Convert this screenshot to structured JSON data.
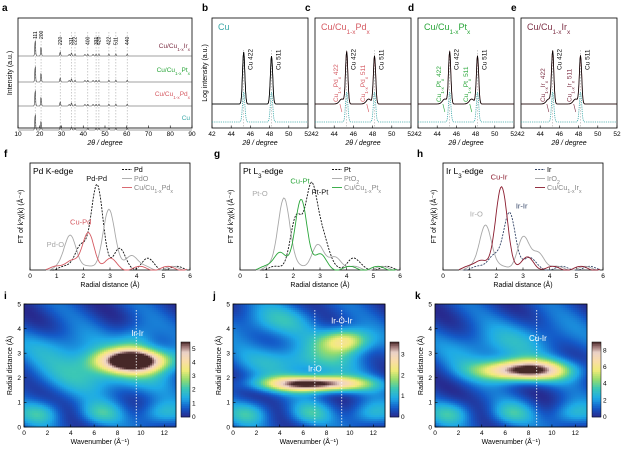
{
  "chart_data": [
    {
      "panel": "a",
      "type": "line",
      "xlabel": "2θ / degree",
      "ylabel": "Intensity (a.u.)",
      "xlim": [
        10,
        90
      ],
      "xticks": [
        "10",
        "20",
        "30",
        "40",
        "50",
        "60",
        "70",
        "80",
        "90"
      ],
      "hkl": [
        {
          "label": "111",
          "x": 17.9
        },
        {
          "label": "200",
          "x": 20.6
        },
        {
          "label": "220",
          "x": 29.4
        },
        {
          "label": "311",
          "x": 34.6
        },
        {
          "label": "222",
          "x": 36.2
        },
        {
          "label": "400",
          "x": 42.1
        },
        {
          "label": "331",
          "x": 45.9
        },
        {
          "label": "420",
          "x": 47.2
        },
        {
          "label": "422",
          "x": 51.8
        },
        {
          "label": "511",
          "x": 55.0
        },
        {
          "label": "440",
          "x": 60.2
        }
      ],
      "series": [
        {
          "name": "Cu/Cu1-xIrx",
          "color": "#7d3045"
        },
        {
          "name": "Cu/Cu1-xPtx",
          "color": "#2aa63a"
        },
        {
          "name": "Cu/Cu1-xPdx",
          "color": "#d55a62"
        },
        {
          "name": "Cu",
          "color": "#3aa7a7"
        }
      ]
    },
    {
      "panel": "b",
      "type": "line",
      "title": "Cu",
      "title_color": "#3aa7a7",
      "xlabel": "2θ / degree",
      "ylabel": "Log intensity (a.u.)",
      "xlim": [
        42,
        52
      ],
      "xticks": [
        "42",
        "44",
        "46",
        "48",
        "50",
        "52"
      ],
      "peaks": [
        {
          "label": "Cu 422",
          "x": 45.3
        },
        {
          "label": "Cu 511",
          "x": 48.2
        }
      ]
    },
    {
      "panel": "c",
      "type": "line",
      "title": "Cu/Cu1-xPdx",
      "title_color": "#d55a62",
      "xlabel": "2θ / degree",
      "xlim": [
        42,
        52
      ],
      "xticks": [
        "42",
        "44",
        "46",
        "48",
        "50",
        "52"
      ],
      "peaks": [
        {
          "label": "Cu 422",
          "x": 45.3
        },
        {
          "label": "Cu 511",
          "x": 48.2
        }
      ],
      "alloy_peaks": [
        {
          "label": "Cu1-xPdx 422",
          "x": 44.8
        },
        {
          "label": "Cu1-xPdx 511",
          "x": 47.6
        }
      ]
    },
    {
      "panel": "d",
      "type": "line",
      "title": "Cu/Cu1-xPtx",
      "title_color": "#2aa63a",
      "xlabel": "2θ / degree",
      "xlim": [
        42,
        52
      ],
      "xticks": [
        "42",
        "44",
        "46",
        "48",
        "50",
        "52"
      ],
      "peaks": [
        {
          "label": "Cu 422",
          "x": 45.3
        },
        {
          "label": "Cu 511",
          "x": 48.2
        }
      ],
      "alloy_peaks": [
        {
          "label": "Cu1-xPtx 422",
          "x": 44.8
        },
        {
          "label": "Cu1-xPtx 511",
          "x": 47.6
        }
      ]
    },
    {
      "panel": "e",
      "type": "line",
      "title": "Cu/Cu1-xIrx",
      "title_color": "#7d3045",
      "xlabel": "2θ / degree",
      "xlim": [
        42,
        52
      ],
      "xticks": [
        "42",
        "44",
        "46",
        "48",
        "50",
        "52"
      ],
      "peaks": [
        {
          "label": "Cu 422",
          "x": 45.3
        },
        {
          "label": "Cu 511",
          "x": 48.2
        }
      ],
      "alloy_peaks": [
        {
          "label": "Cu1-xIrx 422",
          "x": 44.9
        },
        {
          "label": "Cu1-xIrx 511",
          "x": 47.7
        }
      ]
    },
    {
      "panel": "f",
      "type": "line",
      "title": "Pd K-edge",
      "xlabel": "Radial distance (Å)",
      "ylabel": "FT of k³χ(k) (Å⁻⁴)",
      "xlim": [
        0,
        6
      ],
      "xticks": [
        "0",
        "1",
        "2",
        "3",
        "4",
        "5",
        "6"
      ],
      "series": [
        {
          "name": "Pd",
          "color": "#111111",
          "style": "dashed",
          "peaks": [
            [
              2.52,
              1.0
            ],
            [
              1.9,
              0.3
            ],
            [
              3.35,
              0.22
            ],
            [
              4.4,
              0.1
            ]
          ]
        },
        {
          "name": "PdO",
          "color": "#a8a8a8",
          "style": "solid",
          "peaks": [
            [
              1.52,
              0.42
            ],
            [
              2.95,
              0.72
            ],
            [
              3.8,
              0.18
            ]
          ]
        },
        {
          "name": "Cu/Cu1-xPdx",
          "color": "#d55a62",
          "style": "solid",
          "peaks": [
            [
              2.2,
              0.42
            ],
            [
              1.55,
              0.12
            ],
            [
              3.0,
              0.1
            ]
          ]
        }
      ],
      "annotations": [
        {
          "text": "Pd-Pd",
          "x": 2.5,
          "y": 1.08,
          "color": "#111111"
        },
        {
          "text": "Cu-Pd",
          "x": 1.9,
          "y": 0.55,
          "color": "#d55a62"
        },
        {
          "text": "Pd-O",
          "x": 0.95,
          "y": 0.28,
          "color": "#a8a8a8"
        }
      ]
    },
    {
      "panel": "g",
      "type": "line",
      "title": "Pt L3-edge",
      "xlabel": "Radial distance (Å)",
      "ylabel": "FT of k³χ(k) (Å⁻⁴)",
      "xlim": [
        0,
        6
      ],
      "xticks": [
        "0",
        "1",
        "2",
        "3",
        "4",
        "5",
        "6"
      ],
      "series": [
        {
          "name": "Pt",
          "color": "#111111",
          "style": "dashed",
          "peaks": [
            [
              2.1,
              0.62
            ],
            [
              2.68,
              0.98
            ],
            [
              3.1,
              0.35
            ],
            [
              4.2,
              0.12
            ]
          ]
        },
        {
          "name": "PtO2",
          "color": "#a8a8a8",
          "style": "solid",
          "peaks": [
            [
              1.65,
              0.88
            ],
            [
              2.9,
              0.3
            ],
            [
              3.6,
              0.15
            ]
          ]
        },
        {
          "name": "Cu/Cu1-xPtx",
          "color": "#2aa63a",
          "style": "solid",
          "peaks": [
            [
              2.3,
              0.84
            ],
            [
              1.5,
              0.22
            ],
            [
              3.0,
              0.15
            ]
          ]
        }
      ],
      "annotations": [
        {
          "text": "Cu-Pt",
          "x": 2.25,
          "y": 1.05,
          "color": "#2aa63a"
        },
        {
          "text": "Pt-Pt",
          "x": 3.0,
          "y": 0.92,
          "color": "#111111"
        },
        {
          "text": "Pt-O",
          "x": 0.75,
          "y": 0.9,
          "color": "#a8a8a8"
        }
      ]
    },
    {
      "panel": "h",
      "type": "line",
      "title": "Ir L3-edge",
      "xlabel": "Radial distance (Å)",
      "ylabel": "FT of k³χ(k) (Å⁻⁴)",
      "xlim": [
        0,
        6
      ],
      "xticks": [
        "0",
        "1",
        "2",
        "3",
        "4",
        "5",
        "6"
      ],
      "series": [
        {
          "name": "Ir",
          "color": "#334466",
          "style": "dashed",
          "peaks": [
            [
              2.5,
              0.66
            ],
            [
              1.9,
              0.18
            ],
            [
              3.2,
              0.12
            ]
          ]
        },
        {
          "name": "IrO2",
          "color": "#a8a8a8",
          "style": "solid",
          "peaks": [
            [
              1.6,
              0.55
            ],
            [
              3.0,
              0.38
            ],
            [
              3.6,
              0.2
            ]
          ]
        },
        {
          "name": "Cu/Cu1-xIrx",
          "color": "#8a1b2e",
          "style": "solid",
          "peaks": [
            [
              2.2,
              0.98
            ],
            [
              1.45,
              0.12
            ],
            [
              3.2,
              0.12
            ]
          ]
        }
      ],
      "annotations": [
        {
          "text": "Cu-Ir",
          "x": 2.1,
          "y": 1.1,
          "color": "#8a1b2e"
        },
        {
          "text": "Ir-Ir",
          "x": 2.95,
          "y": 0.75,
          "color": "#334466"
        },
        {
          "text": "Ir-O",
          "x": 1.25,
          "y": 0.65,
          "color": "#a8a8a8"
        }
      ]
    },
    {
      "panel": "i",
      "type": "heatmap",
      "xlabel": "Wavenumber (Å⁻¹)",
      "ylabel": "Radial distance (Å)",
      "xlim": [
        0,
        13
      ],
      "ylim": [
        0,
        5
      ],
      "xticks": [
        "0",
        "2",
        "4",
        "6",
        "8",
        "10",
        "12"
      ],
      "yticks": [
        "0",
        "1",
        "2",
        "3",
        "4",
        "5"
      ],
      "colorbar": {
        "min": 0,
        "max": 5.5,
        "ticks": [
          "0",
          "1",
          "2",
          "3",
          "4",
          "5"
        ]
      },
      "blobs": [
        {
          "kx": 9.4,
          "r": 2.7,
          "sx": 2.2,
          "sr": 0.33,
          "a": 5.5
        },
        {
          "kx": 7.0,
          "r": 2.2,
          "sx": 3.8,
          "sr": 0.6,
          "a": 1.6
        },
        {
          "kx": 3.0,
          "r": 3.3,
          "sx": 2.4,
          "sr": 0.5,
          "a": 0.9
        },
        {
          "kx": 9.6,
          "r": 3.5,
          "sx": 1.2,
          "sr": 0.5,
          "a": 1.3
        }
      ],
      "marker_x": 9.6,
      "annotations": [
        {
          "text": "Ir-Ir",
          "x": 9.7,
          "y": 3.7
        }
      ]
    },
    {
      "panel": "j",
      "type": "heatmap",
      "xlabel": "Wavenumber (Å⁻¹)",
      "ylabel": "Radial distance (Å)",
      "xlim": [
        0,
        13
      ],
      "ylim": [
        0,
        5
      ],
      "xticks": [
        "0",
        "2",
        "4",
        "6",
        "8",
        "10",
        "12"
      ],
      "yticks": [
        "0",
        "1",
        "2",
        "3",
        "4",
        "5"
      ],
      "colorbar": {
        "min": 0,
        "max": 3.6,
        "ticks": [
          "0",
          "1",
          "2",
          "3"
        ]
      },
      "blobs": [
        {
          "kx": 7.0,
          "r": 1.75,
          "sx": 3.0,
          "sr": 0.22,
          "a": 3.6
        },
        {
          "kx": 9.6,
          "r": 3.5,
          "sx": 1.5,
          "sr": 0.35,
          "a": 2.2
        },
        {
          "kx": 6.0,
          "r": 2.7,
          "sx": 3.5,
          "sr": 0.5,
          "a": 1.0
        },
        {
          "kx": 3.5,
          "r": 4.3,
          "sx": 2.5,
          "sr": 0.5,
          "a": 0.8
        }
      ],
      "marker_x": [
        7.0,
        9.3
      ],
      "annotations": [
        {
          "text": "Ir-O-Ir",
          "x": 9.3,
          "y": 4.2
        },
        {
          "text": "Ir-O",
          "x": 7.0,
          "y": 2.25
        }
      ]
    },
    {
      "panel": "k",
      "type": "heatmap",
      "xlabel": "Wavenumber (Å⁻¹)",
      "ylabel": "Radial distance (Å)",
      "xlim": [
        0,
        13
      ],
      "ylim": [
        0,
        5
      ],
      "xticks": [
        "0",
        "2",
        "4",
        "6",
        "8",
        "10",
        "12"
      ],
      "yticks": [
        "0",
        "1",
        "2",
        "3",
        "4",
        "5"
      ],
      "colorbar": {
        "min": 0,
        "max": 9,
        "ticks": [
          "0",
          "2",
          "4",
          "6",
          "8"
        ]
      },
      "blobs": [
        {
          "kx": 7.6,
          "r": 2.3,
          "sx": 2.6,
          "sr": 0.3,
          "a": 9.0
        },
        {
          "kx": 4.0,
          "r": 3.2,
          "sx": 2.5,
          "sr": 0.6,
          "a": 1.5
        },
        {
          "kx": 8.8,
          "r": 3.6,
          "sx": 2.5,
          "sr": 0.6,
          "a": 1.2
        }
      ],
      "marker_x": 8.7,
      "annotations": [
        {
          "text": "Cu-Ir",
          "x": 8.8,
          "y": 3.5
        }
      ]
    }
  ]
}
